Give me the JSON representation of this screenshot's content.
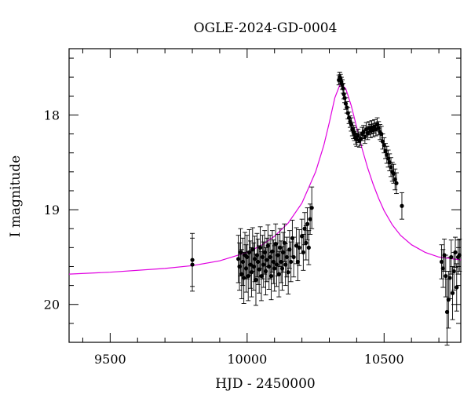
{
  "chart_data": {
    "type": "scatter",
    "title": "OGLE-2024-GD-0004",
    "xlabel": "HJD - 2450000",
    "ylabel": "I magnitude",
    "xlim": [
      9350,
      10780
    ],
    "ylim": [
      20.4,
      17.3
    ],
    "y_inverted": true,
    "xticks_major": [
      9500,
      10000,
      10500
    ],
    "yticks_major": [
      18,
      19,
      20
    ],
    "xtick_labels": [
      "9500",
      "10000",
      "10500"
    ],
    "ytick_labels": [
      "18",
      "19",
      "20"
    ],
    "grid": false,
    "model_color": "#e000e0",
    "model": {
      "name": "",
      "x": [
        9350,
        9500,
        9700,
        9800,
        9900,
        10000,
        10050,
        10100,
        10150,
        10200,
        10250,
        10280,
        10300,
        10320,
        10340,
        10360,
        10380,
        10400,
        10420,
        10440,
        10460,
        10480,
        10500,
        10530,
        10560,
        10600,
        10650,
        10700,
        10780
      ],
      "y": [
        19.68,
        19.66,
        19.62,
        19.59,
        19.54,
        19.45,
        19.38,
        19.28,
        19.14,
        18.93,
        18.6,
        18.32,
        18.08,
        17.82,
        17.67,
        17.72,
        17.9,
        18.13,
        18.36,
        18.56,
        18.73,
        18.88,
        19.01,
        19.16,
        19.27,
        19.37,
        19.45,
        19.5,
        19.53
      ]
    },
    "series": [
      {
        "x": [
          9800,
          9800,
          9968,
          9972,
          9976,
          9980,
          9984,
          9988,
          9992,
          9996,
          10000,
          10004,
          10008,
          10012,
          10016,
          10020,
          10024,
          10028,
          10032,
          10036,
          10040,
          10044,
          10048,
          10052,
          10056,
          10060,
          10064,
          10068,
          10072,
          10076,
          10080,
          10084,
          10088,
          10092,
          10096,
          10100,
          10104,
          10108,
          10112,
          10116,
          10120,
          10124,
          10128,
          10132,
          10136,
          10140,
          10145,
          10150,
          10155,
          10160,
          10165,
          10170,
          10180,
          10185,
          10190,
          10200,
          10205,
          10210,
          10215,
          10220,
          10225,
          10230,
          10236,
          10335,
          10338,
          10341,
          10344,
          10347,
          10350,
          10353,
          10356,
          10360,
          10364,
          10368,
          10372,
          10376,
          10380,
          10384,
          10388,
          10392,
          10396,
          10400,
          10405,
          10410,
          10415,
          10420,
          10425,
          10430,
          10435,
          10440,
          10445,
          10450,
          10455,
          10460,
          10465,
          10470,
          10475,
          10480,
          10485,
          10490,
          10495,
          10500,
          10505,
          10510,
          10515,
          10520,
          10525,
          10530,
          10535,
          10540,
          10545,
          10565,
          10710,
          10715,
          10720,
          10725,
          10730,
          10735,
          10740,
          10745,
          10750,
          10755,
          10760,
          10765,
          10770,
          10775
        ],
        "y": [
          19.53,
          19.58,
          19.52,
          19.6,
          19.45,
          19.68,
          19.55,
          19.72,
          19.48,
          19.62,
          19.5,
          19.7,
          19.45,
          19.58,
          19.66,
          19.42,
          19.6,
          19.52,
          19.74,
          19.48,
          19.55,
          19.63,
          19.4,
          19.7,
          19.5,
          19.58,
          19.45,
          19.65,
          19.53,
          19.38,
          19.6,
          19.5,
          19.7,
          19.44,
          19.55,
          19.62,
          19.36,
          19.58,
          19.48,
          19.68,
          19.4,
          19.55,
          19.62,
          19.45,
          19.35,
          19.58,
          19.5,
          19.66,
          19.42,
          19.55,
          19.3,
          19.5,
          19.38,
          19.55,
          19.4,
          19.28,
          19.45,
          19.2,
          19.35,
          19.15,
          19.4,
          19.1,
          18.98,
          17.63,
          17.6,
          17.62,
          17.65,
          17.68,
          17.72,
          17.78,
          17.82,
          17.88,
          17.92,
          17.98,
          18.03,
          18.07,
          18.1,
          18.15,
          18.18,
          18.2,
          18.24,
          18.26,
          18.22,
          18.27,
          18.25,
          18.2,
          18.18,
          18.23,
          18.15,
          18.19,
          18.14,
          18.17,
          18.13,
          18.16,
          18.12,
          18.15,
          18.1,
          18.14,
          18.18,
          18.2,
          18.28,
          18.32,
          18.38,
          18.42,
          18.46,
          18.5,
          18.55,
          18.6,
          18.62,
          18.68,
          18.72,
          18.96,
          19.55,
          19.62,
          19.48,
          19.7,
          20.08,
          19.95,
          19.72,
          19.5,
          19.88,
          19.65,
          19.45,
          19.82,
          19.5,
          19.48
        ],
        "yerr": [
          0.28,
          0.28,
          0.25,
          0.25,
          0.25,
          0.26,
          0.25,
          0.27,
          0.24,
          0.25,
          0.23,
          0.26,
          0.24,
          0.25,
          0.26,
          0.23,
          0.25,
          0.24,
          0.27,
          0.23,
          0.24,
          0.25,
          0.22,
          0.26,
          0.23,
          0.24,
          0.23,
          0.25,
          0.23,
          0.22,
          0.24,
          0.23,
          0.25,
          0.22,
          0.23,
          0.24,
          0.21,
          0.23,
          0.22,
          0.24,
          0.2,
          0.22,
          0.23,
          0.21,
          0.2,
          0.22,
          0.21,
          0.23,
          0.2,
          0.21,
          0.19,
          0.21,
          0.19,
          0.2,
          0.19,
          0.18,
          0.19,
          0.17,
          0.18,
          0.17,
          0.18,
          0.16,
          0.22,
          0.05,
          0.05,
          0.05,
          0.05,
          0.05,
          0.05,
          0.05,
          0.05,
          0.06,
          0.06,
          0.06,
          0.06,
          0.06,
          0.07,
          0.07,
          0.07,
          0.07,
          0.07,
          0.07,
          0.07,
          0.07,
          0.07,
          0.07,
          0.07,
          0.07,
          0.07,
          0.07,
          0.07,
          0.07,
          0.07,
          0.07,
          0.07,
          0.07,
          0.07,
          0.07,
          0.08,
          0.08,
          0.08,
          0.08,
          0.08,
          0.09,
          0.09,
          0.09,
          0.1,
          0.1,
          0.1,
          0.11,
          0.11,
          0.14,
          0.18,
          0.2,
          0.17,
          0.22,
          0.35,
          0.3,
          0.22,
          0.18,
          0.28,
          0.2,
          0.16,
          0.25,
          0.18,
          0.17
        ]
      }
    ]
  }
}
